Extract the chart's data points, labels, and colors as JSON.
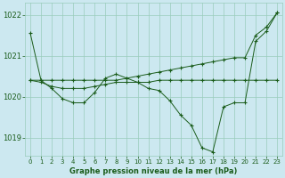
{
  "xlabel": "Graphe pression niveau de la mer (hPa)",
  "background_color": "#cce8f0",
  "grid_color": "#99ccbb",
  "line_color": "#1a5c1a",
  "text_color": "#1a5c1a",
  "xlim": [
    -0.5,
    23.5
  ],
  "ylim": [
    1018.55,
    1022.3
  ],
  "yticks": [
    1019,
    1020,
    1021,
    1022
  ],
  "xticks": [
    0,
    1,
    2,
    3,
    4,
    5,
    6,
    7,
    8,
    9,
    10,
    11,
    12,
    13,
    14,
    15,
    16,
    17,
    18,
    19,
    20,
    21,
    22,
    23
  ],
  "curve_zigzag": [
    1021.55,
    1020.4,
    1020.2,
    1019.95,
    1019.85,
    1019.85,
    1020.1,
    1020.45,
    1020.55,
    1020.45,
    1020.35,
    1020.2,
    1020.15,
    1019.9,
    1019.55,
    1019.3,
    1018.75,
    1018.65,
    1019.75,
    1019.85,
    1019.85,
    1021.35,
    1021.6,
    1022.05
  ],
  "curve_flat": [
    1020.4,
    1020.35,
    1020.25,
    1020.2,
    1020.2,
    1020.2,
    1020.25,
    1020.3,
    1020.35,
    1020.35,
    1020.35,
    1020.35,
    1020.4,
    1020.4,
    1020.4,
    1020.4,
    1020.4,
    1020.4,
    1020.4,
    1020.4,
    1020.4,
    1020.4,
    1020.4,
    1020.4
  ],
  "curve_rising": [
    1020.4,
    1020.4,
    1020.4,
    1020.4,
    1020.4,
    1020.4,
    1020.4,
    1020.4,
    1020.4,
    1020.45,
    1020.5,
    1020.55,
    1020.6,
    1020.65,
    1020.7,
    1020.75,
    1020.8,
    1020.85,
    1020.9,
    1020.95,
    1020.95,
    1021.5,
    1021.7,
    1022.05
  ],
  "figsize": [
    3.2,
    2.0
  ],
  "dpi": 100
}
